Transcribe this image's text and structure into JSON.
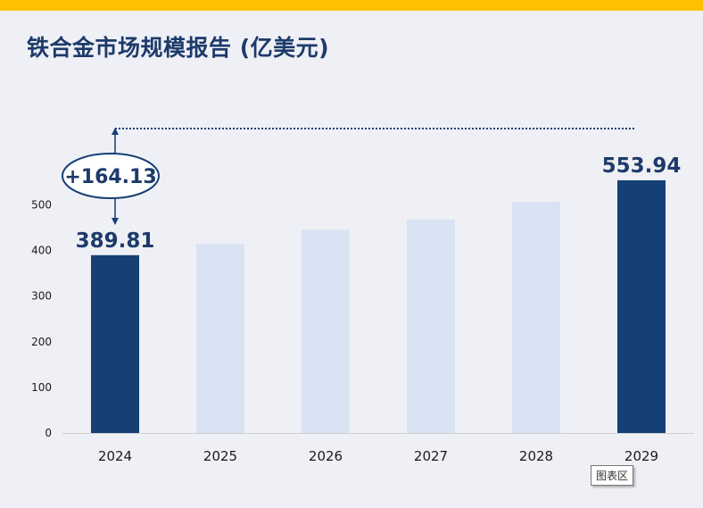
{
  "title": "铁合金市场规模报告 (亿美元)",
  "tooltip": "图表区",
  "colors": {
    "accent_band": "#ffc000",
    "title": "#1d3a6b",
    "highlight_bar": "#153f75",
    "muted_bar": "#d9e3f4",
    "axis_text": "#1a1a1a"
  },
  "chart_data": {
    "type": "bar",
    "categories": [
      "2024",
      "2025",
      "2026",
      "2027",
      "2028",
      "2029"
    ],
    "values": [
      389.81,
      415,
      446,
      468,
      507,
      553.94
    ],
    "highlighted": [
      "2024",
      "2029"
    ],
    "ylim": [
      0,
      600
    ],
    "yticks": [
      0,
      100,
      200,
      300,
      400,
      500
    ],
    "data_labels": [
      {
        "category": "2024",
        "text": "389.81"
      },
      {
        "category": "2029",
        "text": "553.94"
      }
    ],
    "growth_annotation": "+164.13",
    "grid": false,
    "legend": "none"
  }
}
